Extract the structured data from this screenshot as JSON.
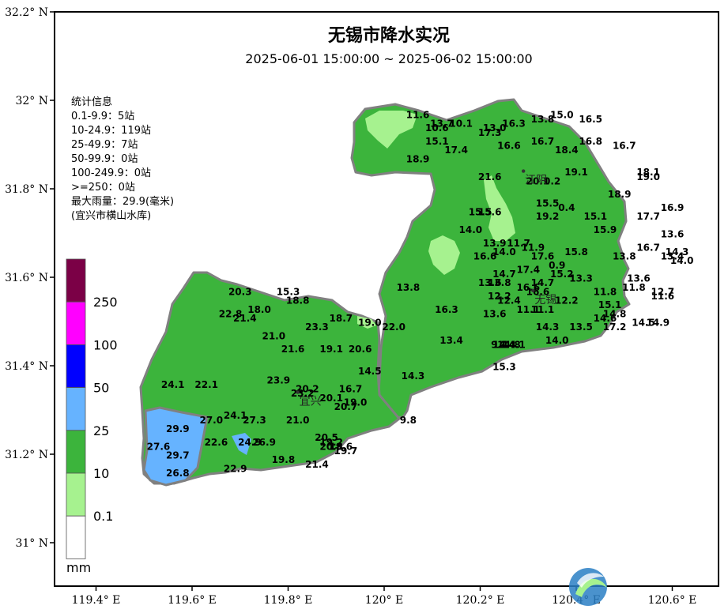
{
  "title": "无锡市降水实况",
  "subtitle": "2025-06-01 15:00:00 ~ 2025-06-02 15:00:00",
  "x_ticks": [
    "119.4° E",
    "119.6° E",
    "119.8° E",
    "120° E",
    "120.2° E",
    "120.4° E",
    "120.6° E",
    "120.8° E"
  ],
  "y_ticks": [
    "32.2° N",
    "32° N",
    "31.8° N",
    "31.6° N",
    "31.4° N",
    "31.2° N",
    "31° N"
  ],
  "stats": {
    "heading": "统计信息",
    "lines": [
      "0.1-9.9：5站",
      "10-24.9：119站",
      "25-49.9：7站",
      "50-99.9：0站",
      "100-249.9：0站",
      ">=250：0站",
      "最大雨量：29.9(毫米)",
      "(宜兴市横山水库)"
    ]
  },
  "legend": {
    "unit": "mm",
    "bins": [
      {
        "color": "#7b0046",
        "label": ""
      },
      {
        "color": "#ff00ff",
        "label": "250"
      },
      {
        "color": "#0000ff",
        "label": "100"
      },
      {
        "color": "#66b3ff",
        "label": "50"
      },
      {
        "color": "#3cb43c",
        "label": "25"
      },
      {
        "color": "#a6f28f",
        "label": "10"
      },
      {
        "color": "#ffffff",
        "label": "0.1"
      }
    ]
  },
  "colors": {
    "land": "#3cb43c",
    "light": "#a6f28f",
    "blue": "#66b3ff",
    "border": "#808080"
  },
  "cities": [
    {
      "name": "江阴",
      "lon": 120.29,
      "lat": 31.84
    },
    {
      "name": "无锡",
      "lon": 120.31,
      "lat": 31.57
    },
    {
      "name": "宜兴",
      "lon": 119.82,
      "lat": 31.34
    }
  ],
  "chart_data": {
    "type": "map",
    "value_unit": "mm",
    "x_range": [
      119.33,
      120.84
    ],
    "y_range": [
      31.0,
      32.22
    ],
    "stations": [
      {
        "v": "11.6",
        "lon": 120.07,
        "lat": 31.96
      },
      {
        "v": "10.6",
        "lon": 120.11,
        "lat": 31.93
      },
      {
        "v": "13.7",
        "lon": 120.12,
        "lat": 31.94
      },
      {
        "v": "10.1",
        "lon": 120.16,
        "lat": 31.94
      },
      {
        "v": "17.3",
        "lon": 120.22,
        "lat": 31.92
      },
      {
        "v": "13.0",
        "lon": 120.23,
        "lat": 31.93
      },
      {
        "v": "16.3",
        "lon": 120.27,
        "lat": 31.94
      },
      {
        "v": "13.8",
        "lon": 120.33,
        "lat": 31.95
      },
      {
        "v": "15.0",
        "lon": 120.37,
        "lat": 31.96
      },
      {
        "v": "16.5",
        "lon": 120.43,
        "lat": 31.95
      },
      {
        "v": "15.1",
        "lon": 120.11,
        "lat": 31.9
      },
      {
        "v": "17.4",
        "lon": 120.15,
        "lat": 31.88
      },
      {
        "v": "18.9",
        "lon": 120.07,
        "lat": 31.86
      },
      {
        "v": "16.6",
        "lon": 120.26,
        "lat": 31.89
      },
      {
        "v": "16.7",
        "lon": 120.33,
        "lat": 31.9
      },
      {
        "v": "16.8",
        "lon": 120.43,
        "lat": 31.9
      },
      {
        "v": "16.7",
        "lon": 120.5,
        "lat": 31.89
      },
      {
        "v": "18.4",
        "lon": 120.38,
        "lat": 31.88
      },
      {
        "v": "19.1",
        "lon": 120.4,
        "lat": 31.83
      },
      {
        "v": "18.1",
        "lon": 120.55,
        "lat": 31.83
      },
      {
        "v": "19.0",
        "lon": 120.55,
        "lat": 31.82
      },
      {
        "v": "21.6",
        "lon": 120.22,
        "lat": 31.82
      },
      {
        "v": "20.1",
        "lon": 120.32,
        "lat": 31.81
      },
      {
        "v": "0.2",
        "lon": 120.35,
        "lat": 31.81
      },
      {
        "v": "18.9",
        "lon": 120.49,
        "lat": 31.78
      },
      {
        "v": "16.9",
        "lon": 120.6,
        "lat": 31.75
      },
      {
        "v": "15.5",
        "lon": 120.34,
        "lat": 31.76
      },
      {
        "v": "0.4",
        "lon": 120.38,
        "lat": 31.75
      },
      {
        "v": "15.5",
        "lon": 120.2,
        "lat": 31.74
      },
      {
        "v": "15.6",
        "lon": 120.22,
        "lat": 31.74
      },
      {
        "v": "19.2",
        "lon": 120.34,
        "lat": 31.73
      },
      {
        "v": "15.1",
        "lon": 120.44,
        "lat": 31.73
      },
      {
        "v": "17.7",
        "lon": 120.55,
        "lat": 31.73
      },
      {
        "v": "14.0",
        "lon": 120.18,
        "lat": 31.7
      },
      {
        "v": "15.9",
        "lon": 120.46,
        "lat": 31.7
      },
      {
        "v": "13.6",
        "lon": 120.6,
        "lat": 31.69
      },
      {
        "v": "13.9",
        "lon": 120.23,
        "lat": 31.67
      },
      {
        "v": "11.7",
        "lon": 120.28,
        "lat": 31.67
      },
      {
        "v": "11.9",
        "lon": 120.31,
        "lat": 31.66
      },
      {
        "v": "14.0",
        "lon": 120.25,
        "lat": 31.65
      },
      {
        "v": "15.8",
        "lon": 120.4,
        "lat": 31.65
      },
      {
        "v": "13.8",
        "lon": 120.5,
        "lat": 31.64
      },
      {
        "v": "16.7",
        "lon": 120.55,
        "lat": 31.66
      },
      {
        "v": "14.3",
        "lon": 120.61,
        "lat": 31.65
      },
      {
        "v": "13.4",
        "lon": 120.6,
        "lat": 31.64
      },
      {
        "v": "14.0",
        "lon": 120.62,
        "lat": 31.63
      },
      {
        "v": "16.6",
        "lon": 120.21,
        "lat": 31.64
      },
      {
        "v": "17.6",
        "lon": 120.33,
        "lat": 31.64
      },
      {
        "v": "17.4",
        "lon": 120.3,
        "lat": 31.61
      },
      {
        "v": "0.9",
        "lon": 120.36,
        "lat": 31.62
      },
      {
        "v": "14.7",
        "lon": 120.25,
        "lat": 31.6
      },
      {
        "v": "15.2",
        "lon": 120.37,
        "lat": 31.6
      },
      {
        "v": "13.3",
        "lon": 120.41,
        "lat": 31.59
      },
      {
        "v": "13.6",
        "lon": 120.22,
        "lat": 31.58
      },
      {
        "v": "13.8",
        "lon": 120.24,
        "lat": 31.58
      },
      {
        "v": "16.6",
        "lon": 120.3,
        "lat": 31.57
      },
      {
        "v": "14.7",
        "lon": 120.33,
        "lat": 31.58
      },
      {
        "v": "16.6",
        "lon": 120.32,
        "lat": 31.56
      },
      {
        "v": "11.8",
        "lon": 120.46,
        "lat": 31.56
      },
      {
        "v": "11.8",
        "lon": 120.52,
        "lat": 31.57
      },
      {
        "v": "13.6",
        "lon": 120.53,
        "lat": 31.59
      },
      {
        "v": "12.7",
        "lon": 120.58,
        "lat": 31.56
      },
      {
        "v": "11.6",
        "lon": 120.58,
        "lat": 31.55
      },
      {
        "v": "13.8",
        "lon": 120.05,
        "lat": 31.57
      },
      {
        "v": "12.2",
        "lon": 120.24,
        "lat": 31.55
      },
      {
        "v": "12.4",
        "lon": 120.26,
        "lat": 31.54
      },
      {
        "v": "12.2",
        "lon": 120.38,
        "lat": 31.54
      },
      {
        "v": "15.1",
        "lon": 120.47,
        "lat": 31.53
      },
      {
        "v": "16.3",
        "lon": 120.13,
        "lat": 31.52
      },
      {
        "v": "13.6",
        "lon": 120.23,
        "lat": 31.51
      },
      {
        "v": "11.1",
        "lon": 120.3,
        "lat": 31.52
      },
      {
        "v": "11.1",
        "lon": 120.33,
        "lat": 31.52
      },
      {
        "v": "14.8",
        "lon": 120.48,
        "lat": 31.51
      },
      {
        "v": "14.6",
        "lon": 120.46,
        "lat": 31.5
      },
      {
        "v": "14.5",
        "lon": 120.54,
        "lat": 31.49
      },
      {
        "v": "14.9",
        "lon": 120.57,
        "lat": 31.49
      },
      {
        "v": "14.3",
        "lon": 120.34,
        "lat": 31.48
      },
      {
        "v": "13.5",
        "lon": 120.41,
        "lat": 31.48
      },
      {
        "v": "17.2",
        "lon": 120.48,
        "lat": 31.48
      },
      {
        "v": "13.4",
        "lon": 120.14,
        "lat": 31.45
      },
      {
        "v": "14.0",
        "lon": 120.36,
        "lat": 31.45
      },
      {
        "v": "9.4",
        "lon": 120.24,
        "lat": 31.44
      },
      {
        "v": "14.4",
        "lon": 120.25,
        "lat": 31.44
      },
      {
        "v": "14.1",
        "lon": 120.27,
        "lat": 31.44
      },
      {
        "v": "14.8",
        "lon": 120.26,
        "lat": 31.44
      },
      {
        "v": "15.3",
        "lon": 120.25,
        "lat": 31.39
      },
      {
        "v": "14.3",
        "lon": 120.06,
        "lat": 31.37
      },
      {
        "v": "9.8",
        "lon": 120.05,
        "lat": 31.27
      },
      {
        "v": "20.3",
        "lon": 119.7,
        "lat": 31.56
      },
      {
        "v": "15.3",
        "lon": 119.8,
        "lat": 31.56
      },
      {
        "v": "18.8",
        "lon": 119.82,
        "lat": 31.54
      },
      {
        "v": "22.8",
        "lon": 119.68,
        "lat": 31.51
      },
      {
        "v": "18.0",
        "lon": 119.74,
        "lat": 31.52
      },
      {
        "v": "21.4",
        "lon": 119.71,
        "lat": 31.5
      },
      {
        "v": "23.3",
        "lon": 119.86,
        "lat": 31.48
      },
      {
        "v": "18.7",
        "lon": 119.91,
        "lat": 31.5
      },
      {
        "v": "19.0",
        "lon": 119.97,
        "lat": 31.49
      },
      {
        "v": "22.0",
        "lon": 120.02,
        "lat": 31.48
      },
      {
        "v": "21.0",
        "lon": 119.77,
        "lat": 31.46
      },
      {
        "v": "21.6",
        "lon": 119.81,
        "lat": 31.43
      },
      {
        "v": "19.1",
        "lon": 119.89,
        "lat": 31.43
      },
      {
        "v": "20.6",
        "lon": 119.95,
        "lat": 31.43
      },
      {
        "v": "14.5",
        "lon": 119.97,
        "lat": 31.38
      },
      {
        "v": "24.1",
        "lon": 119.56,
        "lat": 31.35
      },
      {
        "v": "22.1",
        "lon": 119.63,
        "lat": 31.35
      },
      {
        "v": "23.9",
        "lon": 119.78,
        "lat": 31.36
      },
      {
        "v": "20.2",
        "lon": 119.84,
        "lat": 31.34
      },
      {
        "v": "23.2",
        "lon": 119.83,
        "lat": 31.33
      },
      {
        "v": "16.7",
        "lon": 119.93,
        "lat": 31.34
      },
      {
        "v": "20.1",
        "lon": 119.89,
        "lat": 31.32
      },
      {
        "v": "19.0",
        "lon": 119.94,
        "lat": 31.31
      },
      {
        "v": "20.7",
        "lon": 119.92,
        "lat": 31.3
      },
      {
        "v": "24.1",
        "lon": 119.69,
        "lat": 31.28
      },
      {
        "v": "27.0",
        "lon": 119.64,
        "lat": 31.27
      },
      {
        "v": "27.3",
        "lon": 119.73,
        "lat": 31.27
      },
      {
        "v": "21.0",
        "lon": 119.82,
        "lat": 31.27
      },
      {
        "v": "29.9",
        "lon": 119.57,
        "lat": 31.25
      },
      {
        "v": "22.6",
        "lon": 119.65,
        "lat": 31.22
      },
      {
        "v": "24.9",
        "lon": 119.72,
        "lat": 31.22
      },
      {
        "v": "26.9",
        "lon": 119.75,
        "lat": 31.22
      },
      {
        "v": "20.5",
        "lon": 119.88,
        "lat": 31.23
      },
      {
        "v": "19.2",
        "lon": 119.89,
        "lat": 31.22
      },
      {
        "v": "20.8",
        "lon": 119.89,
        "lat": 31.21
      },
      {
        "v": "19.6",
        "lon": 119.91,
        "lat": 31.21
      },
      {
        "v": "19.7",
        "lon": 119.92,
        "lat": 31.2
      },
      {
        "v": "27.6",
        "lon": 119.53,
        "lat": 31.21
      },
      {
        "v": "29.7",
        "lon": 119.57,
        "lat": 31.19
      },
      {
        "v": "19.8",
        "lon": 119.79,
        "lat": 31.18
      },
      {
        "v": "21.4",
        "lon": 119.86,
        "lat": 31.17
      },
      {
        "v": "22.9",
        "lon": 119.69,
        "lat": 31.16
      },
      {
        "v": "26.8",
        "lon": 119.57,
        "lat": 31.15
      }
    ]
  }
}
